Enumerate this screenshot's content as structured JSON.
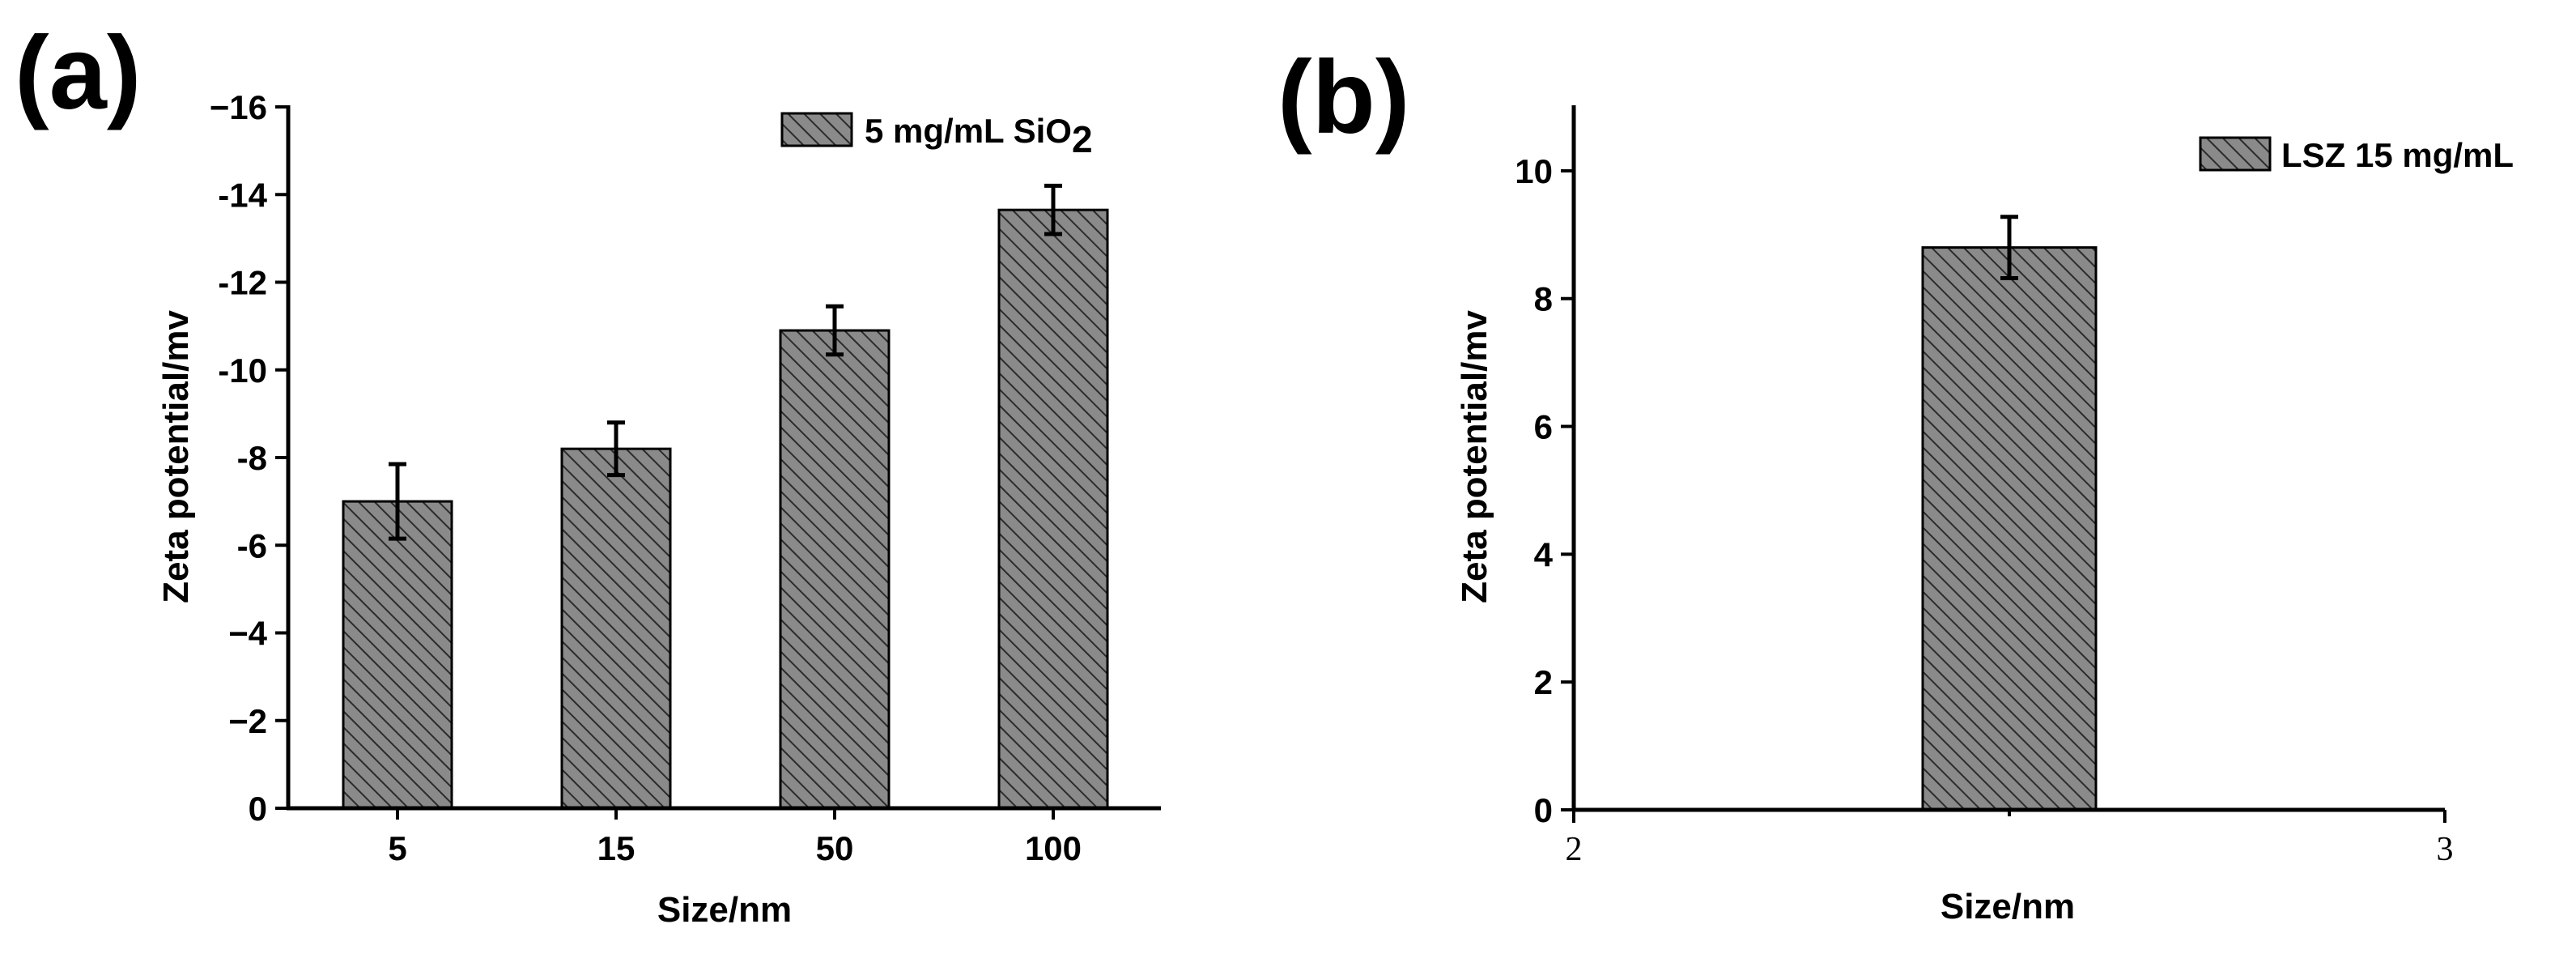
{
  "chart_data": [
    {
      "panel": "(a)",
      "type": "bar",
      "categories": [
        "5",
        "15",
        "50",
        "100"
      ],
      "series": [
        {
          "name": "5 mg/mL SiO",
          "name_subscript": "2",
          "values": [
            -7.0,
            -8.2,
            -10.9,
            -13.65
          ],
          "errors": [
            0.85,
            0.6,
            0.55,
            0.55
          ]
        }
      ],
      "xlabel": "Size/nm",
      "ylabel": "Zeta potential/mv",
      "ylim": [
        0,
        -16
      ],
      "yticks": [
        0,
        -2,
        -4,
        -6,
        -8,
        -10,
        -12,
        -14,
        -16
      ],
      "ytick_labels": [
        "0",
        "−2",
        "−4",
        "-6",
        "-8",
        "-10",
        "-12",
        "-14",
        "−16"
      ],
      "legend_position": "top-right"
    },
    {
      "panel": "(b)",
      "type": "bar",
      "x_range": [
        2,
        3
      ],
      "xticks": [
        "2",
        "3"
      ],
      "series": [
        {
          "name": "LSZ 15 mg/mL",
          "x": [
            2.5
          ],
          "values": [
            8.8
          ],
          "errors": [
            0.48
          ]
        }
      ],
      "xlabel": "Size/nm",
      "ylabel": "Zeta potential/mv",
      "ylim": [
        0,
        11
      ],
      "yticks": [
        0,
        2,
        4,
        6,
        8,
        10
      ],
      "ytick_labels": [
        "0",
        "2",
        "4",
        "6",
        "8",
        "10"
      ],
      "legend_position": "top-right"
    }
  ]
}
